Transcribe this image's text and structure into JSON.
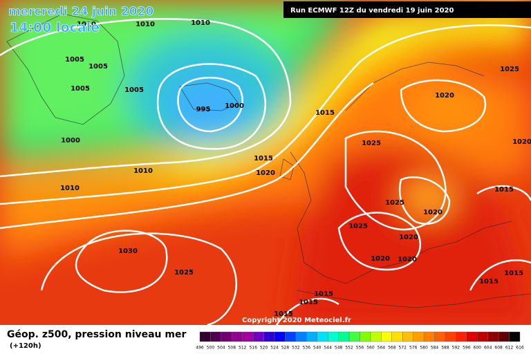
{
  "header": {
    "date": "mercredi 24 juin 2020",
    "time": "14:00 locale",
    "run": "Run ECMWF 12Z du vendredi 19 juin 2020"
  },
  "isobar_labels": [
    1010,
    1010,
    1010,
    1005,
    1005,
    1005,
    1005,
    995,
    1000,
    1000,
    1015,
    1015,
    1010,
    1020,
    1010,
    1025,
    1020,
    1025,
    1020,
    1025,
    1020,
    1015,
    1025,
    1020,
    1030,
    1020,
    1020,
    1025,
    1015,
    1015,
    1015,
    1015,
    1015
  ],
  "copyright": "Copyright 2020 Meteociel.fr",
  "footer": {
    "title": "Géop. z500, pression niveau mer",
    "lead_time": "(+120h)"
  },
  "scale": {
    "labels": [
      496,
      500,
      504,
      508,
      512,
      516,
      520,
      524,
      528,
      532,
      536,
      540,
      544,
      548,
      552,
      556,
      560,
      564,
      568,
      572,
      576,
      580,
      584,
      588,
      592,
      596,
      600,
      604,
      608,
      612,
      616
    ],
    "colors": [
      "#300030",
      "#500050",
      "#700070",
      "#900090",
      "#a000a0",
      "#7000c0",
      "#3000d0",
      "#0000ff",
      "#0040ff",
      "#0080ff",
      "#00b0ff",
      "#00e0ff",
      "#00ffd0",
      "#00ff90",
      "#40ff40",
      "#80ff00",
      "#c0ff00",
      "#ffff00",
      "#ffe000",
      "#ffc000",
      "#ffa000",
      "#ff8000",
      "#ff6000",
      "#ff4000",
      "#ff2000",
      "#e00000",
      "#c00000",
      "#900000",
      "#600000",
      "#000000"
    ]
  }
}
